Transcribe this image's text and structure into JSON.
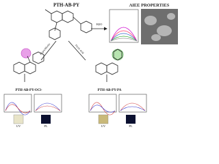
{
  "title": "PTH-AB-PY",
  "aiee": {
    "title": "AIEE PROPERTIES",
    "arrow_label": "H2O"
  },
  "reactions": [
    {
      "arrow_label": "Hypochlorite",
      "product": "PTH-AB-PY-OCl-",
      "vials": [
        "UV",
        "PL"
      ]
    },
    {
      "arrow_label": "Picric acid",
      "product": "PTH-AB-PY-PA",
      "vials": [
        "UV",
        "PL"
      ]
    }
  ]
}
